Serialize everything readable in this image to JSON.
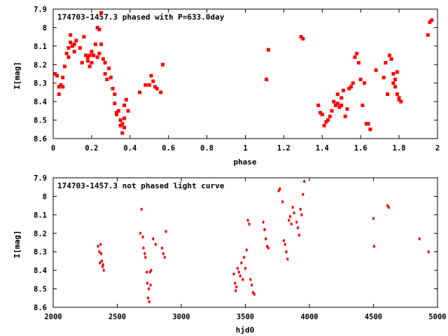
{
  "chart_data": [
    {
      "type": "scatter",
      "title": "174703-1457.3 phased with P=633.0day",
      "xlabel": "phase",
      "ylabel": "I[mag]",
      "xlim": [
        0,
        2
      ],
      "ylim": [
        8.6,
        7.9
      ],
      "y_inverted": true,
      "x_ticks": [
        0,
        0.2,
        0.4,
        0.6,
        0.8,
        1,
        1.2,
        1.4,
        1.6,
        1.8,
        2
      ],
      "x_tick_labels": [
        "0",
        "0.2",
        "0.4",
        "0.6",
        "0.8",
        "1",
        "1.2",
        "1.4",
        "1.6",
        "1.8",
        "2"
      ],
      "y_ticks": [
        7.9,
        8.0,
        8.1,
        8.2,
        8.3,
        8.4,
        8.5,
        8.6
      ],
      "y_tick_labels": [
        "7.9",
        "8",
        "8.1",
        "8.2",
        "8.3",
        "8.4",
        "8.5",
        "8.6"
      ],
      "grid": false,
      "marker_color": "#ff0000",
      "points": [
        [
          0.01,
          8.25
        ],
        [
          0.02,
          8.26
        ],
        [
          0.03,
          8.32
        ],
        [
          0.03,
          8.36
        ],
        [
          0.04,
          8.31
        ],
        [
          0.05,
          8.32
        ],
        [
          0.05,
          8.27
        ],
        [
          0.06,
          8.21
        ],
        [
          0.07,
          8.14
        ],
        [
          0.08,
          8.11
        ],
        [
          0.08,
          8.16
        ],
        [
          0.09,
          8.08
        ],
        [
          0.09,
          8.04
        ],
        [
          0.1,
          8.1
        ],
        [
          0.11,
          8.13
        ],
        [
          0.11,
          8.09
        ],
        [
          0.12,
          8.07
        ],
        [
          0.14,
          8.11
        ],
        [
          0.15,
          8.19
        ],
        [
          0.16,
          8.05
        ],
        [
          0.17,
          8.15
        ],
        [
          0.18,
          8.16
        ],
        [
          0.18,
          8.18
        ],
        [
          0.19,
          8.21
        ],
        [
          0.19,
          8.15
        ],
        [
          0.2,
          8.13
        ],
        [
          0.2,
          8.19
        ],
        [
          0.21,
          8.15
        ],
        [
          0.22,
          8.09
        ],
        [
          0.23,
          8.16
        ],
        [
          0.23,
          8.0
        ],
        [
          0.24,
          8.01
        ],
        [
          0.24,
          8.14
        ],
        [
          0.25,
          8.09
        ],
        [
          0.25,
          7.92
        ],
        [
          0.26,
          8.17
        ],
        [
          0.27,
          8.19
        ],
        [
          0.27,
          8.25
        ],
        [
          0.28,
          8.28
        ],
        [
          0.29,
          8.22
        ],
        [
          0.3,
          8.27
        ],
        [
          0.31,
          8.33
        ],
        [
          0.32,
          8.36
        ],
        [
          0.32,
          8.41
        ],
        [
          0.33,
          8.46
        ],
        [
          0.33,
          8.47
        ],
        [
          0.34,
          8.45
        ],
        [
          0.35,
          8.5
        ],
        [
          0.35,
          8.53
        ],
        [
          0.36,
          8.52
        ],
        [
          0.36,
          8.57
        ],
        [
          0.37,
          8.49
        ],
        [
          0.37,
          8.54
        ],
        [
          0.37,
          8.42
        ],
        [
          0.38,
          8.39
        ],
        [
          0.39,
          8.45
        ],
        [
          0.45,
          8.35
        ],
        [
          0.48,
          8.31
        ],
        [
          0.5,
          8.31
        ],
        [
          0.51,
          8.26
        ],
        [
          0.52,
          8.29
        ],
        [
          0.53,
          8.32
        ],
        [
          0.54,
          8.33
        ],
        [
          0.56,
          8.35
        ],
        [
          0.57,
          8.2
        ],
        [
          1.11,
          8.28
        ],
        [
          1.12,
          8.12
        ],
        [
          1.29,
          8.05
        ],
        [
          1.3,
          8.06
        ],
        [
          1.38,
          8.42
        ],
        [
          1.39,
          8.46
        ],
        [
          1.4,
          8.47
        ],
        [
          1.41,
          8.53
        ],
        [
          1.42,
          8.51
        ],
        [
          1.43,
          8.5
        ],
        [
          1.44,
          8.48
        ],
        [
          1.45,
          8.45
        ],
        [
          1.46,
          8.4
        ],
        [
          1.47,
          8.42
        ],
        [
          1.48,
          8.36
        ],
        [
          1.48,
          8.41
        ],
        [
          1.49,
          8.43
        ],
        [
          1.5,
          8.38
        ],
        [
          1.5,
          8.42
        ],
        [
          1.51,
          8.34
        ],
        [
          1.52,
          8.48
        ],
        [
          1.53,
          8.44
        ],
        [
          1.54,
          8.33
        ],
        [
          1.55,
          8.32
        ],
        [
          1.56,
          8.3
        ],
        [
          1.57,
          8.16
        ],
        [
          1.58,
          8.14
        ],
        [
          1.59,
          8.19
        ],
        [
          1.6,
          8.28
        ],
        [
          1.61,
          8.42
        ],
        [
          1.62,
          8.3
        ],
        [
          1.63,
          8.52
        ],
        [
          1.64,
          8.52
        ],
        [
          1.65,
          8.55
        ],
        [
          1.68,
          8.23
        ],
        [
          1.72,
          8.27
        ],
        [
          1.73,
          8.19
        ],
        [
          1.74,
          8.36
        ],
        [
          1.75,
          8.15
        ],
        [
          1.76,
          8.17
        ],
        [
          1.77,
          8.3
        ],
        [
          1.77,
          8.25
        ],
        [
          1.78,
          8.28
        ],
        [
          1.78,
          8.32
        ],
        [
          1.79,
          8.24
        ],
        [
          1.79,
          8.36
        ],
        [
          1.8,
          8.38
        ],
        [
          1.8,
          8.39
        ],
        [
          1.81,
          8.4
        ],
        [
          1.95,
          8.04
        ],
        [
          1.96,
          7.97
        ],
        [
          1.97,
          7.96
        ]
      ]
    },
    {
      "type": "scatter",
      "title": "174703-1457.3 not phased light curve",
      "xlabel": "hjd0",
      "ylabel": "I[mag]",
      "xlim": [
        2000,
        5000
      ],
      "ylim": [
        8.6,
        7.9
      ],
      "y_inverted": true,
      "x_ticks": [
        2000,
        2500,
        3000,
        3500,
        4000,
        4500,
        5000
      ],
      "x_tick_labels": [
        "2000",
        "2500",
        "3000",
        "3500",
        "4000",
        "4500",
        "5000"
      ],
      "y_ticks": [
        7.9,
        8.0,
        8.1,
        8.2,
        8.3,
        8.4,
        8.5,
        8.6
      ],
      "y_tick_labels": [
        "7.9",
        "8",
        "8.1",
        "8.2",
        "8.3",
        "8.4",
        "8.5",
        "8.6"
      ],
      "grid": false,
      "marker_color": "#ff0000",
      "points": [
        [
          2350,
          8.27
        ],
        [
          2360,
          8.3
        ],
        [
          2365,
          8.36
        ],
        [
          2370,
          8.26
        ],
        [
          2375,
          8.31
        ],
        [
          2380,
          8.35
        ],
        [
          2385,
          8.38
        ],
        [
          2390,
          8.37
        ],
        [
          2395,
          8.4
        ],
        [
          2680,
          8.2
        ],
        [
          2690,
          8.07
        ],
        [
          2700,
          8.22
        ],
        [
          2705,
          8.28
        ],
        [
          2715,
          8.31
        ],
        [
          2720,
          8.33
        ],
        [
          2730,
          8.41
        ],
        [
          2735,
          8.47
        ],
        [
          2740,
          8.55
        ],
        [
          2745,
          8.5
        ],
        [
          2750,
          8.57
        ],
        [
          2755,
          8.41
        ],
        [
          2760,
          8.48
        ],
        [
          2765,
          8.4
        ],
        [
          2780,
          8.23
        ],
        [
          2800,
          8.26
        ],
        [
          2850,
          8.28
        ],
        [
          2860,
          8.31
        ],
        [
          2870,
          8.33
        ],
        [
          2880,
          8.19
        ],
        [
          3410,
          8.42
        ],
        [
          3420,
          8.47
        ],
        [
          3425,
          8.51
        ],
        [
          3430,
          8.49
        ],
        [
          3440,
          8.39
        ],
        [
          3450,
          8.41
        ],
        [
          3460,
          8.43
        ],
        [
          3470,
          8.36
        ],
        [
          3480,
          8.45
        ],
        [
          3490,
          8.33
        ],
        [
          3500,
          8.39
        ],
        [
          3510,
          8.29
        ],
        [
          3520,
          8.13
        ],
        [
          3530,
          8.15
        ],
        [
          3540,
          8.45
        ],
        [
          3550,
          8.48
        ],
        [
          3560,
          8.52
        ],
        [
          3570,
          8.53
        ],
        [
          3640,
          8.14
        ],
        [
          3650,
          8.18
        ],
        [
          3660,
          8.23
        ],
        [
          3670,
          8.27
        ],
        [
          3680,
          8.28
        ],
        [
          3760,
          7.97
        ],
        [
          3770,
          7.96
        ],
        [
          3790,
          8.03
        ],
        [
          3800,
          8.24
        ],
        [
          3810,
          8.26
        ],
        [
          3820,
          8.3
        ],
        [
          3830,
          8.34
        ],
        [
          3840,
          8.13
        ],
        [
          3850,
          8.11
        ],
        [
          3860,
          8.15
        ],
        [
          3870,
          8.06
        ],
        [
          3880,
          8.09
        ],
        [
          3900,
          8.14
        ],
        [
          3910,
          8.17
        ],
        [
          3920,
          8.21
        ],
        [
          3930,
          8.07
        ],
        [
          3940,
          8.1
        ],
        [
          3950,
          7.99
        ],
        [
          3960,
          7.92
        ],
        [
          4500,
          8.12
        ],
        [
          4505,
          8.27
        ],
        [
          4610,
          8.05
        ],
        [
          4620,
          8.06
        ],
        [
          4860,
          8.23
        ],
        [
          4930,
          8.3
        ]
      ]
    }
  ]
}
